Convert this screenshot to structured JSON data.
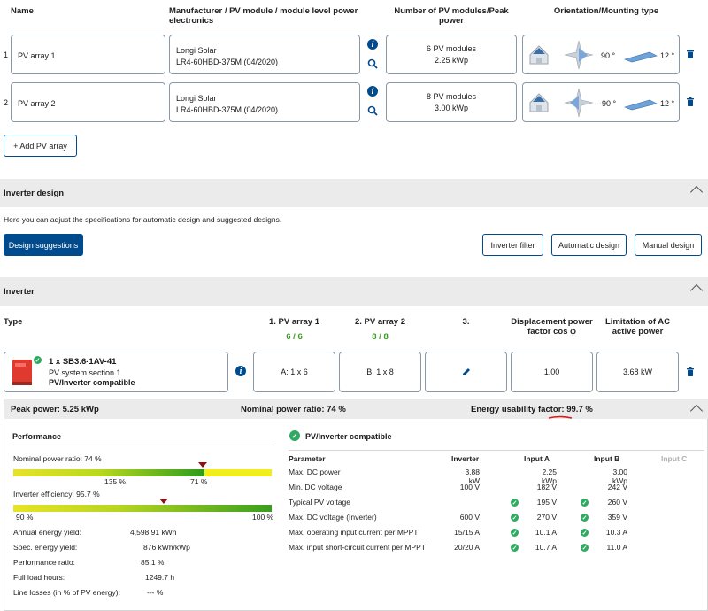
{
  "columns": {
    "name": "Name",
    "manufacturer": "Manufacturer / PV module / module level power electronics",
    "modules": "Number of PV modules/Peak power",
    "orientation": "Orientation/Mounting type"
  },
  "arrays": [
    {
      "index": "1",
      "name": "PV array 1",
      "maker": "Longi Solar",
      "module": "LR4-60HBD-375M (04/2020)",
      "count": "6 PV modules",
      "peak": "2.25 kWp",
      "azimuth": "90 °",
      "tilt": "12 °"
    },
    {
      "index": "2",
      "name": "PV array 2",
      "maker": "Longi Solar",
      "module": "LR4-60HBD-375M (04/2020)",
      "count": "8 PV modules",
      "peak": "3.00 kWp",
      "azimuth": "-90 °",
      "tilt": "12 °"
    }
  ],
  "add_array": "+ Add PV array",
  "inverter_design": {
    "title": "Inverter design",
    "desc": "Here you can adjust the specifications for automatic design and suggested designs.",
    "suggestions": "Design suggestions",
    "filter": "Inverter filter",
    "automatic": "Automatic design",
    "manual": "Manual design"
  },
  "inverter": {
    "title": "Inverter",
    "col_type": "Type",
    "col_pv1": "1. PV array 1",
    "col_pv1_val": "6 / 6",
    "col_pv2": "2. PV array 2",
    "col_pv2_val": "8 / 8",
    "col_3": "3.",
    "col_disp": "Displacement power factor cos φ",
    "col_limit": "Limitation of AC active power",
    "model": "1 x SB3.6-1AV-41",
    "section": "PV system section 1",
    "compat": "PV/Inverter compatible",
    "a_val": "A: 1 x 6",
    "b_val": "B: 1 x 8",
    "cos_val": "1.00",
    "limit_val": "3.68 kW"
  },
  "summary": {
    "peak": "Peak power: 5.25 kWp",
    "nominal": "Nominal power ratio: 74 %",
    "energy_label": "Energy usability factor: ",
    "energy_value": "99.7 %"
  },
  "performance": {
    "title": "Performance",
    "npr_label": "Nominal power ratio: 74 %",
    "npr_min": "135 %",
    "npr_marker": "71 %",
    "npr_marker_fraction": 0.74,
    "eff_label": "Inverter efficiency: 95.7 %",
    "eff_min": "90 %",
    "eff_max": "100 %",
    "eff_marker_fraction": 0.57,
    "rows": [
      {
        "label": "Annual energy yield:",
        "value": "4,598.91 kWh"
      },
      {
        "label": "Spec. energy yield:",
        "value": "876 kWh/kWp"
      },
      {
        "label": "Performance ratio:",
        "value": "85.1 %"
      },
      {
        "label": "Full load hours:",
        "value": "1249.7 h"
      },
      {
        "label": "Line losses (in % of PV energy):",
        "value": "--- %"
      }
    ]
  },
  "compat_table": {
    "title": "PV/Inverter compatible",
    "headers": [
      "Parameter",
      "Inverter",
      "Input A",
      "Input B",
      "Input C"
    ],
    "rows": [
      {
        "param": "Max. DC power",
        "inv": "3.88 kW",
        "a": "2.25 kWp",
        "b": "3.00 kWp",
        "checks": false
      },
      {
        "param": "Min. DC voltage",
        "inv": "100 V",
        "a": "182 V",
        "b": "242 V",
        "checks": false
      },
      {
        "param": "Typical PV voltage",
        "inv": "",
        "a": "195 V",
        "b": "260 V",
        "checks": true
      },
      {
        "param": "Max. DC voltage (Inverter)",
        "inv": "600 V",
        "a": "270 V",
        "b": "359 V",
        "checks": true
      },
      {
        "param": "Max. operating input current per MPPT",
        "inv": "15/15 A",
        "a": "10.1 A",
        "b": "10.3 A",
        "checks": true
      },
      {
        "param": "Max. input short-circuit current per MPPT",
        "inv": "20/20 A",
        "a": "10.7 A",
        "b": "11.0 A",
        "checks": true
      }
    ]
  }
}
